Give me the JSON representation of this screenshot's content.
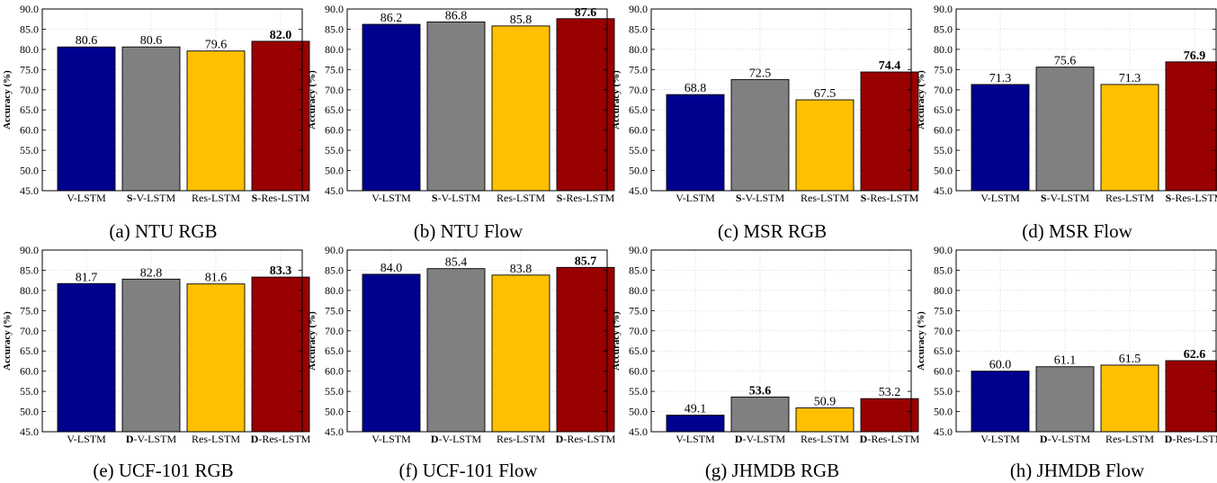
{
  "ylabel": "Accuracy (%)",
  "yticks": [
    "45.0",
    "50.0",
    "55.0",
    "60.0",
    "65.0",
    "70.0",
    "75.0",
    "80.0",
    "85.0",
    "90.0"
  ],
  "colors": [
    "#00008f",
    "#808080",
    "#ffc000",
    "#990000"
  ],
  "chart_data": [
    {
      "type": "bar",
      "caption": "(a) NTU RGB",
      "ylabel": "Accuracy (%)",
      "ylim": [
        45,
        90
      ],
      "grid": true,
      "categories": [
        {
          "pre": "",
          "bold": "",
          "post": "V-LSTM"
        },
        {
          "pre": "",
          "bold": "S",
          "post": "-V-LSTM"
        },
        {
          "pre": "",
          "bold": "",
          "post": "Res-LSTM"
        },
        {
          "pre": "",
          "bold": "S",
          "post": "-Res-LSTM"
        }
      ],
      "values": [
        80.6,
        80.6,
        79.6,
        82.0
      ],
      "labels": [
        "80.6",
        "80.6",
        "79.6",
        "82.0"
      ],
      "best": 3
    },
    {
      "type": "bar",
      "caption": "(b) NTU Flow",
      "ylabel": "Accuracy (%)",
      "ylim": [
        45,
        90
      ],
      "grid": true,
      "categories": [
        {
          "pre": "",
          "bold": "",
          "post": "V-LSTM"
        },
        {
          "pre": "",
          "bold": "S",
          "post": "-V-LSTM"
        },
        {
          "pre": "",
          "bold": "",
          "post": "Res-LSTM"
        },
        {
          "pre": "",
          "bold": "S",
          "post": "-Res-LSTM"
        }
      ],
      "values": [
        86.2,
        86.8,
        85.8,
        87.6
      ],
      "labels": [
        "86.2",
        "86.8",
        "85.8",
        "87.6"
      ],
      "best": 3
    },
    {
      "type": "bar",
      "caption": "(c) MSR RGB",
      "ylabel": "Accuracy (%)",
      "ylim": [
        45,
        90
      ],
      "grid": true,
      "categories": [
        {
          "pre": "",
          "bold": "",
          "post": "V-LSTM"
        },
        {
          "pre": "",
          "bold": "S",
          "post": "-V-LSTM"
        },
        {
          "pre": "",
          "bold": "",
          "post": "Res-LSTM"
        },
        {
          "pre": "",
          "bold": "S",
          "post": "-Res-LSTM"
        }
      ],
      "values": [
        68.8,
        72.5,
        67.5,
        74.4
      ],
      "labels": [
        "68.8",
        "72.5",
        "67.5",
        "74.4"
      ],
      "best": 3
    },
    {
      "type": "bar",
      "caption": "(d) MSR Flow",
      "ylabel": "Accuracy (%)",
      "ylim": [
        45,
        90
      ],
      "grid": true,
      "categories": [
        {
          "pre": "",
          "bold": "",
          "post": "V-LSTM"
        },
        {
          "pre": "",
          "bold": "S",
          "post": "-V-LSTM"
        },
        {
          "pre": "",
          "bold": "",
          "post": "Res-LSTM"
        },
        {
          "pre": "",
          "bold": "S",
          "post": "-Res-LSTM"
        }
      ],
      "values": [
        71.3,
        75.6,
        71.3,
        76.9
      ],
      "labels": [
        "71.3",
        "75.6",
        "71.3",
        "76.9"
      ],
      "best": 3
    },
    {
      "type": "bar",
      "caption": "(e) UCF-101 RGB",
      "ylabel": "Accuracy (%)",
      "ylim": [
        45,
        90
      ],
      "grid": true,
      "categories": [
        {
          "pre": "",
          "bold": "",
          "post": "V-LSTM"
        },
        {
          "pre": "",
          "bold": "D",
          "post": "-V-LSTM"
        },
        {
          "pre": "",
          "bold": "",
          "post": "Res-LSTM"
        },
        {
          "pre": "",
          "bold": "D",
          "post": "-Res-LSTM"
        }
      ],
      "values": [
        81.7,
        82.8,
        81.6,
        83.3
      ],
      "labels": [
        "81.7",
        "82.8",
        "81.6",
        "83.3"
      ],
      "best": 3
    },
    {
      "type": "bar",
      "caption": "(f) UCF-101 Flow",
      "ylabel": "Accuracy (%)",
      "ylim": [
        45,
        90
      ],
      "grid": true,
      "categories": [
        {
          "pre": "",
          "bold": "",
          "post": "V-LSTM"
        },
        {
          "pre": "",
          "bold": "D",
          "post": "-V-LSTM"
        },
        {
          "pre": "",
          "bold": "",
          "post": "Res-LSTM"
        },
        {
          "pre": "",
          "bold": "D",
          "post": "-Res-LSTM"
        }
      ],
      "values": [
        84.0,
        85.4,
        83.8,
        85.7
      ],
      "labels": [
        "84.0",
        "85.4",
        "83.8",
        "85.7"
      ],
      "best": 3
    },
    {
      "type": "bar",
      "caption": "(g) JHMDB RGB",
      "ylabel": "Accuracy (%)",
      "ylim": [
        45,
        90
      ],
      "grid": true,
      "categories": [
        {
          "pre": "",
          "bold": "",
          "post": "V-LSTM"
        },
        {
          "pre": "",
          "bold": "D",
          "post": "-V-LSTM"
        },
        {
          "pre": "",
          "bold": "",
          "post": "Res-LSTM"
        },
        {
          "pre": "",
          "bold": "D",
          "post": "-Res-LSTM"
        }
      ],
      "values": [
        49.1,
        53.6,
        50.9,
        53.2
      ],
      "labels": [
        "49.1",
        "53.6",
        "50.9",
        "53.2"
      ],
      "best": 1
    },
    {
      "type": "bar",
      "caption": "(h) JHMDB Flow",
      "ylabel": "Accuracy (%)",
      "ylim": [
        45,
        90
      ],
      "grid": true,
      "categories": [
        {
          "pre": "",
          "bold": "",
          "post": "V-LSTM"
        },
        {
          "pre": "",
          "bold": "D",
          "post": "-V-LSTM"
        },
        {
          "pre": "",
          "bold": "",
          "post": "Res-LSTM"
        },
        {
          "pre": "",
          "bold": "D",
          "post": "-Res-LSTM"
        }
      ],
      "values": [
        60.0,
        61.1,
        61.5,
        62.6
      ],
      "labels": [
        "60.0",
        "61.1",
        "61.5",
        "62.6"
      ],
      "best": 3
    }
  ]
}
